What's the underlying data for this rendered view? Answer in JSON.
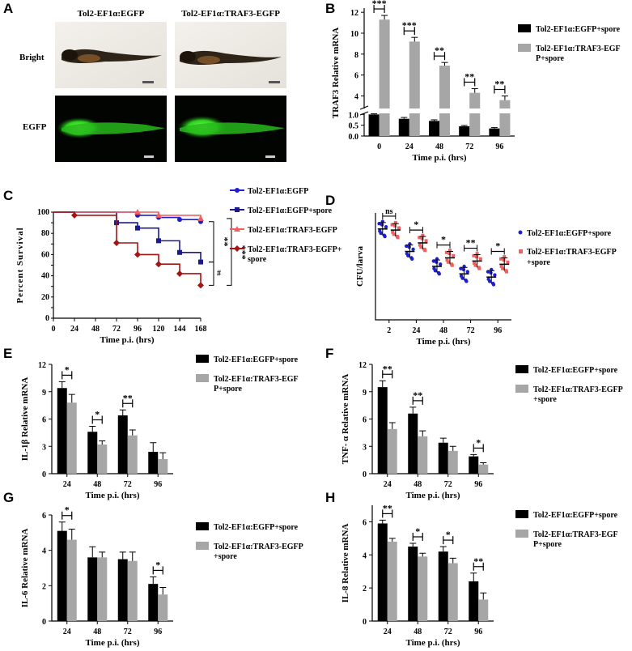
{
  "panel_letters": [
    "A",
    "B",
    "C",
    "D",
    "E",
    "F",
    "G",
    "H"
  ],
  "panel_a": {
    "col_labels": [
      "Tol2-EF1α:EGFP",
      "Tol2-EF1α:TRAF3-EGFP"
    ],
    "row_labels": [
      "Bright",
      "EGFP"
    ]
  },
  "colors": {
    "black": "#000000",
    "gray": "#a6a6a6",
    "blue": "#1f1fcf",
    "navy": "#1a1a8c",
    "salmon": "#f06060",
    "darkred": "#a31515"
  },
  "chart_data": [
    {
      "id": "B",
      "type": "bar",
      "ylabel": "TRAF3  Relative mRNA",
      "xlabel": "Time p.i. (hrs)",
      "categories": [
        "0",
        "24",
        "48",
        "72",
        "96"
      ],
      "axis_break": true,
      "lower_ticks": [
        "0.0",
        "0.5",
        "1.0"
      ],
      "upper_ticks": [
        "4",
        "6",
        "8",
        "10",
        "12"
      ],
      "series": [
        {
          "name": "Tol2-EF1α:EGFP+spore",
          "color": "black",
          "values": [
            1.0,
            0.8,
            0.7,
            0.45,
            0.35
          ],
          "err": [
            0.03,
            0.06,
            0.05,
            0.04,
            0.04
          ]
        },
        {
          "name": "Tol2-EF1α:TRAF3-EGFP+spore",
          "color": "gray",
          "values": [
            11.3,
            9.2,
            6.9,
            4.3,
            3.6
          ],
          "err": [
            0.4,
            0.4,
            0.3,
            0.4,
            0.4
          ]
        }
      ],
      "legend_labels": [
        [
          "Tol2-EF1α:EGFP+spore"
        ],
        [
          "Tol2-EF1α:TRAF3-EGF",
          "P+spore"
        ]
      ],
      "sig": [
        "***",
        "***",
        "**",
        "**",
        "**"
      ]
    },
    {
      "id": "C",
      "type": "line",
      "ylabel": "Percent  Survival",
      "xlabel": "Time p.i. (hrs)",
      "xticks": [
        "0",
        "24",
        "48",
        "72",
        "96",
        "120",
        "144",
        "168"
      ],
      "yticks": [
        "0",
        "10",
        "20",
        "30",
        "40",
        "50",
        "60",
        "70",
        "80",
        "90",
        "100"
      ],
      "series": [
        {
          "name": "Tol2-EF1α:EGFP",
          "color": "blue",
          "marker": "circle",
          "x": [
            0,
            96,
            120,
            144,
            168
          ],
          "y": [
            100,
            97,
            95,
            93,
            91
          ]
        },
        {
          "name": "Tol2-EF1α:EGFP+spore",
          "color": "navy",
          "marker": "square",
          "x": [
            0,
            72,
            96,
            120,
            144,
            168
          ],
          "y": [
            100,
            90,
            85,
            73,
            62,
            53
          ]
        },
        {
          "name": "Tol2-EF1α:TRAF3-EGFP",
          "color": "salmon",
          "marker": "triangle",
          "x": [
            0,
            96,
            120,
            168
          ],
          "y": [
            100,
            100,
            97,
            94
          ]
        },
        {
          "name": "Tol2-EF1α:TRAF3-EGFP+spore",
          "color": "darkred",
          "marker": "diamond",
          "x": [
            24,
            72,
            96,
            120,
            144,
            168
          ],
          "y": [
            97,
            71,
            60,
            51,
            42,
            31
          ]
        }
      ],
      "legend_labels": [
        [
          "Tol2-EF1α:EGFP"
        ],
        [
          "Tol2-EF1α:EGFP+spore"
        ],
        [
          "Tol2-EF1α:TRAF3-EGFP"
        ],
        [
          "Tol2-EF1α:TRAF3-EGFP+",
          "spore"
        ]
      ],
      "brackets": [
        "**",
        "#",
        "***"
      ]
    },
    {
      "id": "D",
      "type": "scatter",
      "ylabel": "CFU/larva",
      "xlabel": "Time p.i. (hrs)",
      "categories": [
        "2",
        "24",
        "48",
        "72",
        "96"
      ],
      "series": [
        {
          "name": "Tol2-EF1α:EGFP+spore",
          "color": "blue",
          "mean": [
            0.85,
            0.64,
            0.5,
            0.43,
            0.4
          ]
        },
        {
          "name": "Tol2-EF1α:TRAF3-EGFP+spore",
          "color": "salmon",
          "mean": [
            0.84,
            0.72,
            0.58,
            0.55,
            0.52
          ]
        }
      ],
      "legend_labels": [
        [
          "Tol2-EF1α:EGFP+spore"
        ],
        [
          "Tol2-EF1α:TRAF3-EGFP",
          "+spore"
        ]
      ],
      "sig": [
        "ns",
        "*",
        "*",
        "**",
        "*"
      ]
    },
    {
      "id": "E",
      "type": "bar",
      "ylabel": "IL-1β Relative mRNA",
      "xlabel": "Time p.i.  (hrs)",
      "categories": [
        "24",
        "48",
        "72",
        "96"
      ],
      "ylim": [
        0,
        12
      ],
      "yticks": [
        "0",
        "3",
        "6",
        "9",
        "12"
      ],
      "series": [
        {
          "name": "Tol2-EF1α:EGFP+spore",
          "color": "black",
          "values": [
            9.4,
            4.6,
            6.4,
            2.4
          ],
          "err": [
            0.7,
            0.6,
            0.6,
            1.0
          ]
        },
        {
          "name": "Tol2-EF1α:TRAF3-EGFP+spore",
          "color": "gray",
          "values": [
            7.8,
            3.2,
            4.2,
            1.6
          ],
          "err": [
            0.9,
            0.4,
            0.6,
            0.7
          ]
        }
      ],
      "legend_labels": [
        [
          "Tol2-EF1α:EGFP+spore"
        ],
        [
          "Tol2-EF1α:TRAF3-EGF",
          "P+spore"
        ]
      ],
      "sig": [
        "*",
        "*",
        "**",
        ""
      ]
    },
    {
      "id": "F",
      "type": "bar",
      "ylabel": "TNF- α Relative mRNA",
      "xlabel": "Time p.i. (hrs)",
      "categories": [
        "24",
        "48",
        "72",
        "96"
      ],
      "ylim": [
        0,
        12
      ],
      "yticks": [
        "0",
        "3",
        "6",
        "9",
        "12"
      ],
      "series": [
        {
          "name": "Tol2-EF1α:EGFP+spore",
          "color": "black",
          "values": [
            9.5,
            6.6,
            3.4,
            1.9
          ],
          "err": [
            0.7,
            0.7,
            0.5,
            0.2
          ]
        },
        {
          "name": "Tol2-EF1α:TRAF3-EGFP+spore",
          "color": "gray",
          "values": [
            4.9,
            4.1,
            2.5,
            1.0
          ],
          "err": [
            0.7,
            0.6,
            0.5,
            0.2
          ]
        }
      ],
      "legend_labels": [
        [
          "Tol2-EF1α:EGFP+spore"
        ],
        [
          "Tol2-EF1α:TRAF3-EGFP",
          "+spore"
        ]
      ],
      "sig": [
        "**",
        "**",
        "",
        "*"
      ]
    },
    {
      "id": "G",
      "type": "bar",
      "ylabel": "IL-6 Relative mRNA",
      "xlabel": "Time p.i.  (hrs)",
      "categories": [
        "24",
        "48",
        "72",
        "96"
      ],
      "ylim": [
        0,
        6
      ],
      "yticks": [
        "0",
        "2",
        "4",
        "6"
      ],
      "series": [
        {
          "name": "Tol2-EF1α:EGFP+spore",
          "color": "black",
          "values": [
            5.1,
            3.6,
            3.5,
            2.1
          ],
          "err": [
            0.5,
            0.6,
            0.4,
            0.4
          ]
        },
        {
          "name": "Tol2-EF1α:TRAF3-EGFP+spore",
          "color": "gray",
          "values": [
            4.6,
            3.6,
            3.4,
            1.5
          ],
          "err": [
            0.6,
            0.3,
            0.5,
            0.4
          ]
        }
      ],
      "legend_labels": [
        [
          "Tol2-EF1α:EGFP+spore"
        ],
        [
          "Tol2-EF1α:TRAF3-EGFP",
          "+spore"
        ]
      ],
      "sig": [
        "*",
        "",
        "",
        "*"
      ]
    },
    {
      "id": "H",
      "type": "bar",
      "ylabel": "IL-8 Relative mRNA",
      "xlabel": "Time p.i. (hrs)",
      "categories": [
        "24",
        "48",
        "72",
        "96"
      ],
      "ylim": [
        0,
        7
      ],
      "yticks": [
        "0",
        "2",
        "4",
        "6"
      ],
      "series": [
        {
          "name": "Tol2-EF1α:EGFP+spore",
          "color": "black",
          "values": [
            5.9,
            4.5,
            4.2,
            2.4
          ],
          "err": [
            0.2,
            0.2,
            0.3,
            0.5
          ]
        },
        {
          "name": "Tol2-EF1α:TRAF3-EGFP+spore",
          "color": "gray",
          "values": [
            4.8,
            3.9,
            3.5,
            1.3
          ],
          "err": [
            0.2,
            0.2,
            0.3,
            0.4
          ]
        }
      ],
      "legend_labels": [
        [
          "Tol2-EF1α:EGFP+spore"
        ],
        [
          "Tol2-EF1α:TRAF3-EGF",
          "P+spore"
        ]
      ],
      "sig": [
        "**",
        "*",
        "*",
        "**"
      ]
    }
  ]
}
